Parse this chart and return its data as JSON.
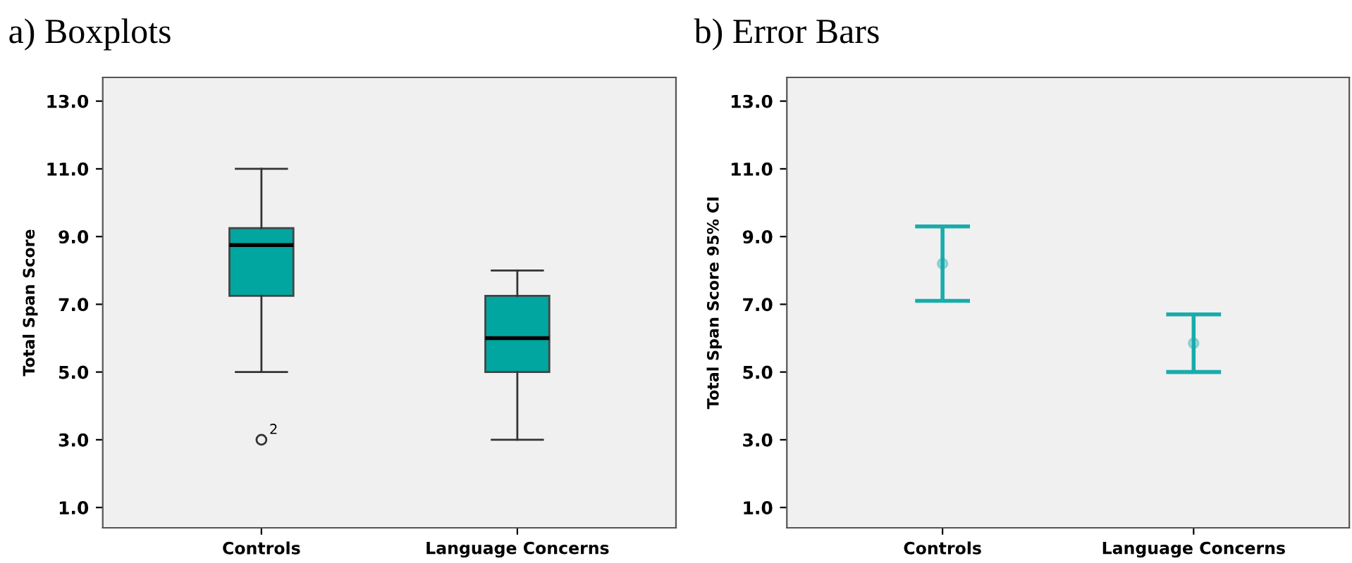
{
  "chart_data": [
    {
      "type": "box",
      "title": "a) Boxplots",
      "ylabel": "Total Span Score",
      "categories": [
        "Controls",
        "Language Concerns"
      ],
      "color": "#00a69f",
      "boxes": [
        {
          "low": 5,
          "q1": 7.25,
          "median": 8.75,
          "q3": 9.25,
          "high": 11,
          "outliers": [
            3
          ]
        },
        {
          "low": 3,
          "q1": 5,
          "median": 6,
          "q3": 7.25,
          "high": 8
        }
      ],
      "annotations": [
        "2"
      ],
      "ylim": [
        0.4,
        13.7
      ],
      "yticks": [
        {
          "value": 1,
          "label": "1.0"
        },
        {
          "value": 3,
          "label": "3.0"
        },
        {
          "value": 5,
          "label": "5.0"
        },
        {
          "value": 7,
          "label": "7.0"
        },
        {
          "value": 9,
          "label": "9.0"
        },
        {
          "value": 11,
          "label": "11.0"
        },
        {
          "value": 13,
          "label": "13.0"
        }
      ],
      "grid": false
    },
    {
      "type": "scatter",
      "title": "b) Error Bars",
      "ylabel": "Total Span Score 95% CI",
      "categories": [
        "Controls",
        "Language Concerns"
      ],
      "color": "#1aabab",
      "marker": "circle",
      "values": [
        8.2,
        5.85
      ],
      "errors": [
        [
          7.1,
          9.3
        ],
        [
          5.0,
          6.7
        ]
      ],
      "ylim": [
        0.4,
        13.7
      ],
      "yticks": [
        {
          "value": 1,
          "label": "1.0"
        },
        {
          "value": 3,
          "label": "3.0"
        },
        {
          "value": 5,
          "label": "5.0"
        },
        {
          "value": 7,
          "label": "7.0"
        },
        {
          "value": 9,
          "label": "9.0"
        },
        {
          "value": 11,
          "label": "11.0"
        },
        {
          "value": 13,
          "label": "13.0"
        }
      ],
      "grid": false
    }
  ]
}
